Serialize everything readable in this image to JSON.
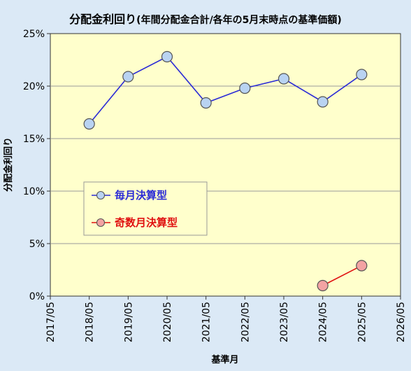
{
  "chart_data": {
    "type": "line",
    "title_main": "分配金利回り",
    "title_sub": "(年間分配金合計/各年の5月末時点の基準価額)",
    "xlabel": "基準月",
    "ylabel": "分配金利回り",
    "x_ticks": [
      "2017/05",
      "2018/05",
      "2019/05",
      "2020/05",
      "2021/05",
      "2022/05",
      "2023/05",
      "2024/05",
      "2025/05",
      "2026/05"
    ],
    "y_ticks": [
      "0%",
      "5%",
      "10%",
      "15%",
      "20%",
      "25%"
    ],
    "ylim": [
      0,
      25
    ],
    "y_unit": "%",
    "grid": "horizontal",
    "legend_position": "center-left",
    "series": [
      {
        "name": "毎月決算型",
        "color": "#2b2bd6",
        "marker_fill": "#b9d3f2",
        "x": [
          "2018/05",
          "2019/05",
          "2020/05",
          "2021/05",
          "2022/05",
          "2023/05",
          "2024/05",
          "2025/05"
        ],
        "values": [
          16.4,
          20.9,
          22.8,
          18.4,
          19.8,
          20.7,
          18.5,
          21.1
        ]
      },
      {
        "name": "奇数月決算型",
        "color": "#e01010",
        "marker_fill": "#f3a3a3",
        "x": [
          "2024/05",
          "2025/05"
        ],
        "values": [
          1.0,
          2.9
        ]
      }
    ]
  },
  "colors": {
    "background": "#dbe9f6",
    "plot_area": "#ffffcc"
  }
}
